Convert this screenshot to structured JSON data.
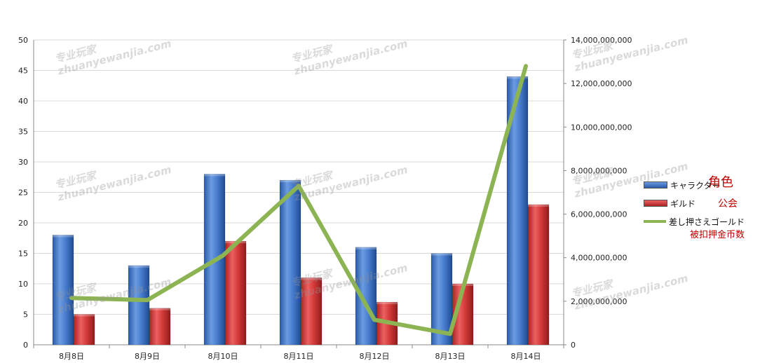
{
  "chart_data": {
    "type": "bar",
    "categories": [
      "8月8日",
      "8月9日",
      "8月10日",
      "8月11日",
      "8月12日",
      "8月13日",
      "8月14日"
    ],
    "series": [
      {
        "name": "キャラクター",
        "kind": "bar",
        "axis": "left",
        "color": "#4a7fd0",
        "values": [
          18,
          13,
          28,
          27,
          16,
          15,
          44
        ]
      },
      {
        "name": "ギルド",
        "kind": "bar",
        "axis": "left",
        "color": "#d63b3b",
        "values": [
          5,
          6,
          17,
          11,
          7,
          10,
          23
        ]
      },
      {
        "name": "差し押さえゴールド",
        "kind": "line",
        "axis": "right",
        "color": "#8db453",
        "values": [
          2150000000,
          2050000000,
          4100000000,
          7300000000,
          1150000000,
          500000000,
          12800000000
        ]
      }
    ],
    "ylim_left": [
      0,
      50
    ],
    "yticks_left": [
      "0",
      "5",
      "10",
      "15",
      "20",
      "25",
      "30",
      "35",
      "40",
      "45",
      "50"
    ],
    "ylim_right": [
      0,
      14000000000
    ],
    "yticks_right": [
      "0",
      "2,000,000,000",
      "4,000,000,000",
      "6,000,000,000",
      "8,000,000,000",
      "10,000,000,000",
      "12,000,000,000",
      "14,000,000,000"
    ],
    "grid": true,
    "legend_position": "right",
    "legend": [
      {
        "label": "キャラクター",
        "annotation": "角色"
      },
      {
        "label": "ギルド",
        "annotation": "公会"
      },
      {
        "label": "差し押さえゴールド",
        "annotation": "被扣押金币数"
      }
    ]
  },
  "watermark": {
    "line1": "专业玩家",
    "line2": "zhuanyewanjia.com"
  }
}
